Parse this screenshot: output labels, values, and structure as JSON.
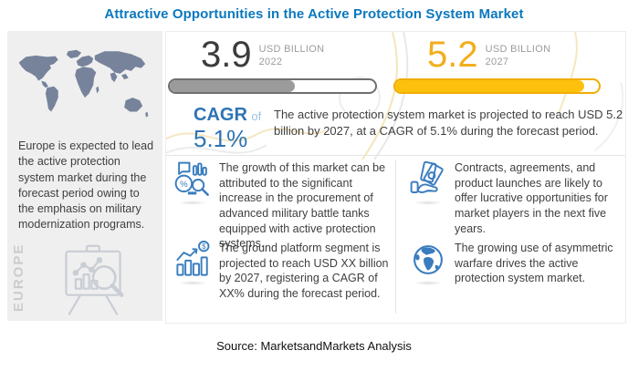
{
  "title": "Attractive Opportunities in the Active Protection System Market",
  "source": "Source: MarketsandMarkets Analysis",
  "colors": {
    "title_blue": "#0b78be",
    "accent_blue": "#2e74b5",
    "light_blue": "#9cc2e5",
    "icon_blue": "#3a7dbf",
    "bar_gray": "#9b9b9b",
    "bar_yellow": "#fdc10d",
    "value_yellow": "#f2ae1c",
    "dark_text": "#3f3f3f",
    "muted_text": "#9c9c9c",
    "panel_gray": "#efefef",
    "map_slate": "#76839b"
  },
  "left_panel": {
    "region_label": "EUROPE",
    "description": "Europe is expected to lead the active protection system market during the forecast period owing to the emphasis on military modernization programs.",
    "map_icon": "world-map",
    "analysis_icon": "easel-chart-magnifier"
  },
  "market_stats": {
    "start": {
      "value": "3.9",
      "unit": "USD BILLION",
      "year": "2022",
      "bar_fill_pct": 61
    },
    "end": {
      "value": "5.2",
      "unit": "USD BILLION",
      "year": "2027",
      "bar_fill_pct": 93
    },
    "cagr": {
      "label": "CAGR",
      "of": "of",
      "value": "5.1%"
    },
    "summary": "The active protection system market is projected to reach USD 5.2 billion  by 2027, at a CAGR of 5.1% during the forecast period."
  },
  "insights": [
    {
      "icon": "growth-analysis-icon",
      "text": "The growth of this market can be attributed to the significant increase in the procurement of advanced military battle tanks equipped with active protection systems."
    },
    {
      "icon": "money-hand-icon",
      "text": "Contracts, agreements, and product launches are likely to offer lucrative opportunities for market players in  the next five years."
    },
    {
      "icon": "bar-growth-dollar-icon",
      "text": "The ground platform segment is projected to reach USD XX billion  by 2027, registering a CAGR of XX% during the forecast period."
    },
    {
      "icon": "globe-icon",
      "text": "The growing use of asymmetric warfare drives the active protection system market."
    }
  ],
  "chart_data": {
    "type": "bar",
    "title": "Attractive Opportunities in the Active Protection System Market",
    "categories": [
      "2022",
      "2027"
    ],
    "values": [
      3.9,
      5.2
    ],
    "unit": "USD Billion",
    "cagr_percent": 5.1,
    "leading_region": "Europe",
    "bar_colors": [
      "#9b9b9b",
      "#fdc10d"
    ],
    "legend_position": "none",
    "grid": false
  }
}
